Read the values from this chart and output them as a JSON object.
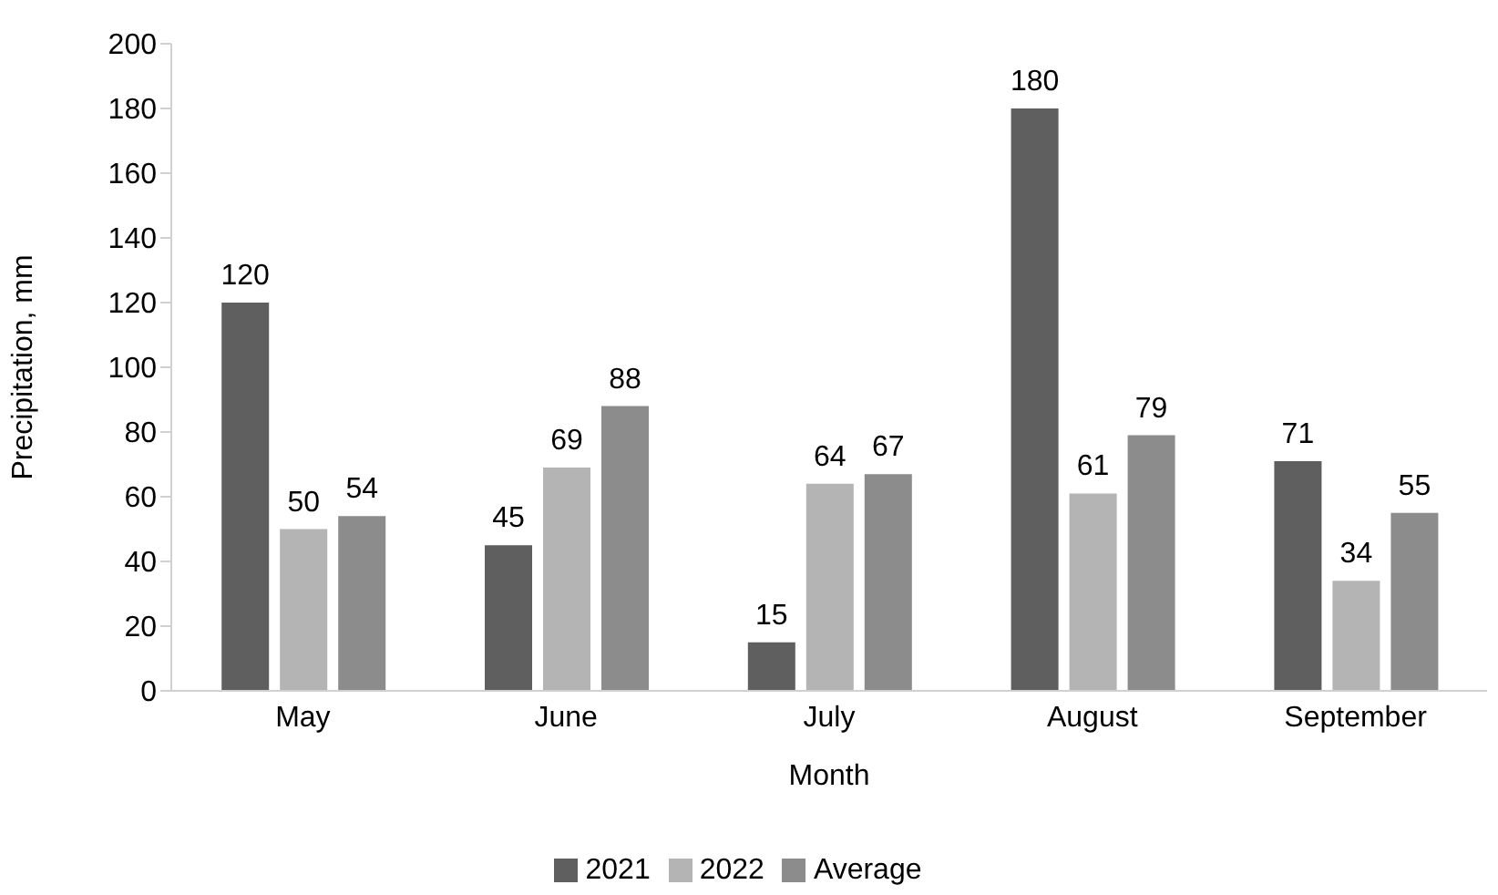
{
  "chart_data": {
    "type": "bar",
    "xlabel": "Month",
    "ylabel": "Precipitation, mm",
    "categories": [
      "May",
      "June",
      "July",
      "August",
      "September"
    ],
    "series": [
      {
        "name": "2021",
        "color": "#5f5f5f",
        "values": [
          120,
          45,
          15,
          180,
          71
        ]
      },
      {
        "name": "2022",
        "color": "#b4b4b4",
        "values": [
          50,
          69,
          64,
          61,
          34
        ]
      },
      {
        "name": "Average",
        "color": "#8c8c8c",
        "values": [
          54,
          88,
          67,
          79,
          55
        ]
      }
    ],
    "ylim": [
      0,
      200
    ],
    "yticks": [
      0,
      20,
      40,
      60,
      80,
      100,
      120,
      140,
      160,
      180,
      200
    ],
    "grid": false,
    "legend": "bottom",
    "data_labels": true
  }
}
